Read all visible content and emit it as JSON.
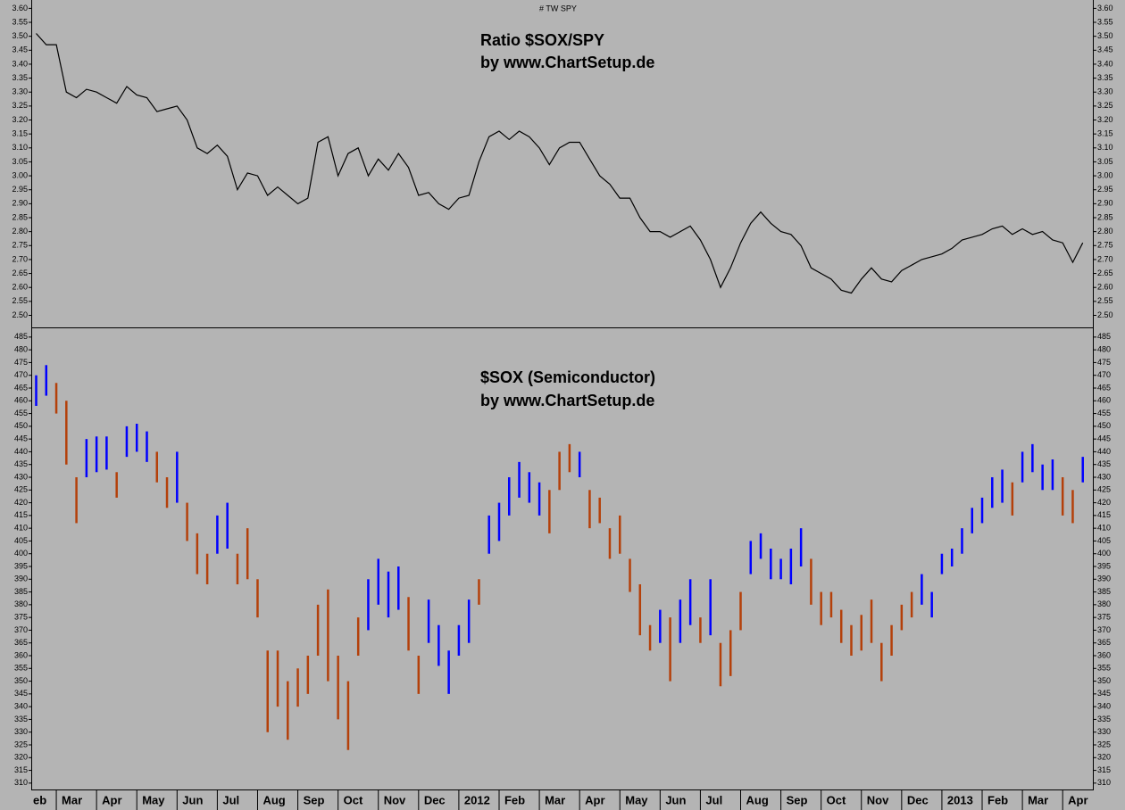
{
  "chart_data": [
    {
      "type": "line",
      "annotation": "#   TW SPY",
      "title": "Ratio $SOX/SPY",
      "subtitle": "by www.ChartSetup.de",
      "color": "#000000",
      "background": "#b4b4b4",
      "xlim": [
        0.4,
        26.75
      ],
      "x": [
        0.5,
        0.75,
        1,
        1.25,
        1.5,
        1.75,
        2,
        2.25,
        2.5,
        2.75,
        3,
        3.25,
        3.5,
        3.75,
        4,
        4.25,
        4.5,
        4.75,
        5,
        5.25,
        5.5,
        5.75,
        6,
        6.25,
        6.5,
        6.75,
        7,
        7.25,
        7.5,
        7.75,
        8,
        8.25,
        8.5,
        8.75,
        9,
        9.25,
        9.5,
        9.75,
        10,
        10.25,
        10.5,
        10.75,
        11,
        11.25,
        11.5,
        11.75,
        12,
        12.25,
        12.5,
        12.75,
        13,
        13.25,
        13.5,
        13.75,
        14,
        14.25,
        14.5,
        14.75,
        15,
        15.25,
        15.5,
        15.75,
        16,
        16.25,
        16.5,
        16.75,
        17,
        17.25,
        17.5,
        17.75,
        18,
        18.25,
        18.5,
        18.75,
        19,
        19.25,
        19.5,
        19.75,
        20,
        20.25,
        20.5,
        20.75,
        21,
        21.25,
        21.5,
        21.75,
        22,
        22.25,
        22.5,
        22.75,
        23,
        23.25,
        23.5,
        23.75,
        24,
        24.25,
        24.5,
        24.75,
        25,
        25.25,
        25.5,
        25.75,
        26,
        26.25,
        26.5
      ],
      "values": [
        3.51,
        3.47,
        3.47,
        3.3,
        3.28,
        3.31,
        3.3,
        3.28,
        3.26,
        3.32,
        3.29,
        3.28,
        3.23,
        3.24,
        3.25,
        3.2,
        3.1,
        3.08,
        3.11,
        3.07,
        2.95,
        3.01,
        3.0,
        2.93,
        2.96,
        2.93,
        2.9,
        2.92,
        3.12,
        3.14,
        3.0,
        3.08,
        3.1,
        3.0,
        3.06,
        3.02,
        3.08,
        3.03,
        2.93,
        2.94,
        2.9,
        2.88,
        2.92,
        2.93,
        3.05,
        3.14,
        3.16,
        3.13,
        3.16,
        3.14,
        3.1,
        3.04,
        3.1,
        3.12,
        3.12,
        3.06,
        3.0,
        2.97,
        2.92,
        2.92,
        2.85,
        2.8,
        2.8,
        2.78,
        2.8,
        2.82,
        2.77,
        2.7,
        2.6,
        2.67,
        2.76,
        2.83,
        2.87,
        2.83,
        2.8,
        2.79,
        2.75,
        2.67,
        2.65,
        2.63,
        2.59,
        2.58,
        2.63,
        2.67,
        2.63,
        2.62,
        2.66,
        2.68,
        2.7,
        2.71,
        2.72,
        2.74,
        2.77,
        2.78,
        2.79,
        2.81,
        2.82,
        2.79,
        2.81,
        2.79,
        2.8,
        2.77,
        2.76,
        2.69,
        2.76
      ],
      "ylim": [
        2.46,
        3.63
      ],
      "yticks": [
        {
          "value": 2.5,
          "label": "2.50"
        },
        {
          "value": 2.55,
          "label": "2.55"
        },
        {
          "value": 2.6,
          "label": "2.60"
        },
        {
          "value": 2.65,
          "label": "2.65"
        },
        {
          "value": 2.7,
          "label": "2.70"
        },
        {
          "value": 2.75,
          "label": "2.75"
        },
        {
          "value": 2.8,
          "label": "2.80"
        },
        {
          "value": 2.85,
          "label": "2.85"
        },
        {
          "value": 2.9,
          "label": "2.90"
        },
        {
          "value": 2.95,
          "label": "2.95"
        },
        {
          "value": 3.0,
          "label": "3.00"
        },
        {
          "value": 3.05,
          "label": "3.05"
        },
        {
          "value": 3.1,
          "label": "3.10"
        },
        {
          "value": 3.15,
          "label": "3.15"
        },
        {
          "value": 3.2,
          "label": "3.20"
        },
        {
          "value": 3.25,
          "label": "3.25"
        },
        {
          "value": 3.3,
          "label": "3.30"
        },
        {
          "value": 3.35,
          "label": "3.35"
        },
        {
          "value": 3.4,
          "label": "3.40"
        },
        {
          "value": 3.45,
          "label": "3.45"
        },
        {
          "value": 3.5,
          "label": "3.50"
        },
        {
          "value": 3.55,
          "label": "3.55"
        },
        {
          "value": 3.6,
          "label": "3.60"
        }
      ]
    },
    {
      "type": "hlbar",
      "title": "$SOX (Semiconductor)",
      "subtitle": "by www.ChartSetup.de",
      "background": "#b4b4b4",
      "palette": {
        "up": "#0000ff",
        "down": "#b4400a"
      },
      "xlim": [
        0.4,
        26.75
      ],
      "x": [
        0.5,
        0.75,
        1,
        1.25,
        1.5,
        1.75,
        2,
        2.25,
        2.5,
        2.75,
        3,
        3.25,
        3.5,
        3.75,
        4,
        4.25,
        4.5,
        4.75,
        5,
        5.25,
        5.5,
        5.75,
        6,
        6.25,
        6.5,
        6.75,
        7,
        7.25,
        7.5,
        7.75,
        8,
        8.25,
        8.5,
        8.75,
        9,
        9.25,
        9.5,
        9.75,
        10,
        10.25,
        10.5,
        10.75,
        11,
        11.25,
        11.5,
        11.75,
        12,
        12.25,
        12.5,
        12.75,
        13,
        13.25,
        13.5,
        13.75,
        14,
        14.25,
        14.5,
        14.75,
        15,
        15.25,
        15.5,
        15.75,
        16,
        16.25,
        16.5,
        16.75,
        17,
        17.25,
        17.5,
        17.75,
        18,
        18.25,
        18.5,
        18.75,
        19,
        19.25,
        19.5,
        19.75,
        20,
        20.25,
        20.5,
        20.75,
        21,
        21.25,
        21.5,
        21.75,
        22,
        22.25,
        22.5,
        22.75,
        23,
        23.25,
        23.5,
        23.75,
        24,
        24.25,
        24.5,
        24.75,
        25,
        25.25,
        25.5,
        25.75,
        26,
        26.25,
        26.5
      ],
      "high": [
        470,
        474,
        467,
        460,
        430,
        445,
        446,
        446,
        432,
        450,
        451,
        448,
        440,
        430,
        440,
        420,
        408,
        400,
        415,
        420,
        400,
        410,
        390,
        362,
        362,
        350,
        355,
        360,
        380,
        386,
        360,
        350,
        375,
        390,
        398,
        393,
        395,
        383,
        360,
        382,
        372,
        362,
        372,
        382,
        390,
        415,
        420,
        430,
        436,
        432,
        428,
        425,
        440,
        443,
        440,
        425,
        422,
        410,
        415,
        398,
        388,
        372,
        378,
        375,
        382,
        390,
        375,
        390,
        365,
        370,
        385,
        405,
        408,
        402,
        398,
        402,
        410,
        398,
        385,
        385,
        378,
        372,
        376,
        382,
        365,
        372,
        380,
        385,
        392,
        385,
        400,
        402,
        410,
        418,
        422,
        430,
        433,
        428,
        440,
        443,
        435,
        437,
        430,
        425,
        438
      ],
      "low": [
        458,
        462,
        455,
        435,
        412,
        430,
        432,
        433,
        422,
        438,
        440,
        436,
        428,
        418,
        420,
        405,
        392,
        388,
        400,
        402,
        388,
        390,
        375,
        330,
        340,
        327,
        340,
        345,
        360,
        350,
        335,
        323,
        360,
        370,
        380,
        375,
        378,
        362,
        345,
        365,
        356,
        345,
        360,
        365,
        380,
        400,
        405,
        415,
        422,
        420,
        415,
        408,
        425,
        432,
        430,
        410,
        412,
        398,
        400,
        385,
        368,
        362,
        365,
        350,
        365,
        372,
        365,
        368,
        348,
        352,
        370,
        392,
        398,
        390,
        390,
        388,
        395,
        380,
        372,
        375,
        365,
        360,
        362,
        365,
        350,
        360,
        370,
        375,
        380,
        375,
        392,
        395,
        400,
        408,
        412,
        418,
        420,
        415,
        428,
        432,
        425,
        425,
        415,
        412,
        428
      ],
      "trend": [
        "up",
        "up",
        "down",
        "down",
        "down",
        "up",
        "up",
        "up",
        "down",
        "up",
        "up",
        "up",
        "down",
        "down",
        "up",
        "down",
        "down",
        "down",
        "up",
        "up",
        "down",
        "down",
        "down",
        "down",
        "down",
        "down",
        "down",
        "down",
        "down",
        "down",
        "down",
        "down",
        "down",
        "up",
        "up",
        "up",
        "up",
        "down",
        "down",
        "up",
        "up",
        "up",
        "up",
        "up",
        "down",
        "up",
        "up",
        "up",
        "up",
        "up",
        "up",
        "down",
        "down",
        "down",
        "up",
        "down",
        "down",
        "down",
        "down",
        "down",
        "down",
        "down",
        "up",
        "down",
        "up",
        "up",
        "down",
        "up",
        "down",
        "down",
        "down",
        "up",
        "up",
        "up",
        "up",
        "up",
        "up",
        "down",
        "down",
        "down",
        "down",
        "down",
        "down",
        "down",
        "down",
        "down",
        "down",
        "down",
        "up",
        "up",
        "up",
        "up",
        "up",
        "up",
        "up",
        "up",
        "up",
        "down",
        "up",
        "up",
        "up",
        "up",
        "down",
        "down",
        "up"
      ],
      "ylim": [
        307.5,
        488.8
      ],
      "yticks": [
        310,
        315,
        320,
        325,
        330,
        335,
        340,
        345,
        350,
        355,
        360,
        365,
        370,
        375,
        380,
        385,
        390,
        395,
        400,
        405,
        410,
        415,
        420,
        425,
        430,
        435,
        440,
        445,
        450,
        455,
        460,
        465,
        470,
        475,
        480,
        485
      ],
      "xticks": [
        {
          "value": 0,
          "label": "eb"
        },
        {
          "value": 1,
          "label": "Mar"
        },
        {
          "value": 2,
          "label": "Apr"
        },
        {
          "value": 3,
          "label": "May"
        },
        {
          "value": 4,
          "label": "Jun"
        },
        {
          "value": 5,
          "label": "Jul"
        },
        {
          "value": 6,
          "label": "Aug"
        },
        {
          "value": 7,
          "label": "Sep"
        },
        {
          "value": 8,
          "label": "Oct"
        },
        {
          "value": 9,
          "label": "Nov"
        },
        {
          "value": 10,
          "label": "Dec"
        },
        {
          "value": 11,
          "label": "2012"
        },
        {
          "value": 12,
          "label": "Feb"
        },
        {
          "value": 13,
          "label": "Mar"
        },
        {
          "value": 14,
          "label": "Apr"
        },
        {
          "value": 15,
          "label": "May"
        },
        {
          "value": 16,
          "label": "Jun"
        },
        {
          "value": 17,
          "label": "Jul"
        },
        {
          "value": 18,
          "label": "Aug"
        },
        {
          "value": 19,
          "label": "Sep"
        },
        {
          "value": 20,
          "label": "Oct"
        },
        {
          "value": 21,
          "label": "Nov"
        },
        {
          "value": 22,
          "label": "Dec"
        },
        {
          "value": 23,
          "label": "2013"
        },
        {
          "value": 24,
          "label": "Feb"
        },
        {
          "value": 25,
          "label": "Mar"
        },
        {
          "value": 26,
          "label": "Apr"
        }
      ]
    }
  ]
}
